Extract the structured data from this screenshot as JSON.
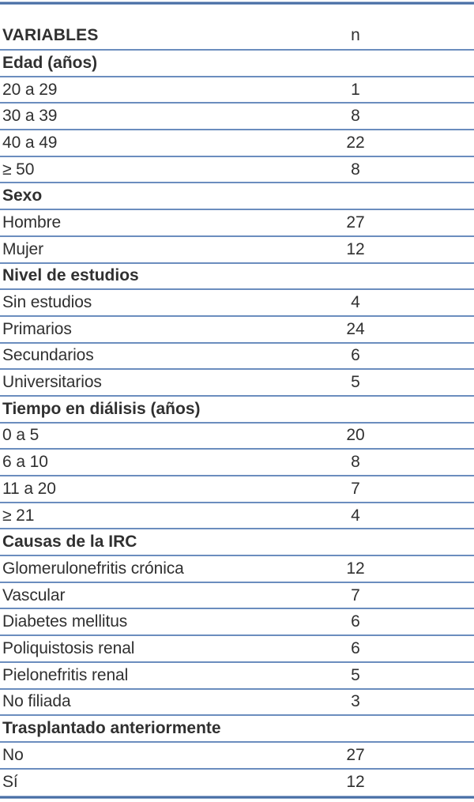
{
  "colors": {
    "rule_thick": "#4a6fa5",
    "rule_thin": "#6b8dbe",
    "text": "#303030",
    "background": "#ffffff"
  },
  "table": {
    "columns": {
      "variables": "VARIABLES",
      "n": "n"
    },
    "rows": [
      {
        "type": "section",
        "label": "Edad (años)",
        "n": ""
      },
      {
        "type": "data",
        "label": "20 a 29",
        "n": "1"
      },
      {
        "type": "data",
        "label": "30 a 39",
        "n": "8"
      },
      {
        "type": "data",
        "label": "40 a 49",
        "n": "22"
      },
      {
        "type": "data",
        "label": "≥ 50",
        "n": "8"
      },
      {
        "type": "section",
        "label": "Sexo",
        "n": ""
      },
      {
        "type": "data",
        "label": "Hombre",
        "n": "27"
      },
      {
        "type": "data",
        "label": "Mujer",
        "n": "12"
      },
      {
        "type": "section",
        "label": "Nivel de estudios",
        "n": ""
      },
      {
        "type": "data",
        "label": "Sin estudios",
        "n": "4"
      },
      {
        "type": "data",
        "label": "Primarios",
        "n": "24"
      },
      {
        "type": "data",
        "label": "Secundarios",
        "n": "6"
      },
      {
        "type": "data",
        "label": "Universitarios",
        "n": "5"
      },
      {
        "type": "section",
        "label": "Tiempo en diálisis (años)",
        "n": ""
      },
      {
        "type": "data",
        "label": "0 a 5",
        "n": "20"
      },
      {
        "type": "data",
        "label": "6 a 10",
        "n": "8"
      },
      {
        "type": "data",
        "label": "11 a 20",
        "n": "7"
      },
      {
        "type": "data",
        "label": "≥ 21",
        "n": "4"
      },
      {
        "type": "section",
        "label": "Causas de la IRC",
        "n": ""
      },
      {
        "type": "data",
        "label": "Glomerulonefritis crónica",
        "n": "12"
      },
      {
        "type": "data",
        "label": "Vascular",
        "n": "7"
      },
      {
        "type": "data",
        "label": "Diabetes mellitus",
        "n": "6"
      },
      {
        "type": "data",
        "label": "Poliquistosis renal",
        "n": "6"
      },
      {
        "type": "data",
        "label": "Pielonefritis renal",
        "n": "5"
      },
      {
        "type": "data",
        "label": "No filiada",
        "n": "3"
      },
      {
        "type": "section",
        "label": "Trasplantado anteriormente",
        "n": ""
      },
      {
        "type": "data",
        "label": "No",
        "n": "27"
      },
      {
        "type": "data",
        "label": "Sí",
        "n": "12"
      }
    ]
  }
}
